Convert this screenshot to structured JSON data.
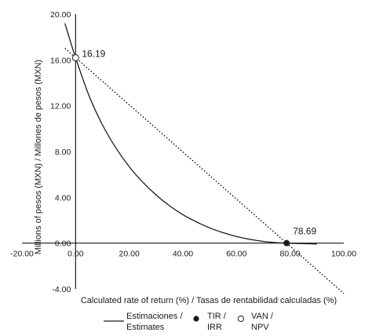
{
  "chart_data": {
    "type": "line",
    "xlabel": "Calculated rate of return (%) / Tasas de rentabilidad calculadas (%)",
    "ylabel": "Millions of pesos (MXN) / Millones de pesos (MXN)",
    "xlim": [
      -20,
      100
    ],
    "ylim": [
      -4,
      20
    ],
    "xticks": [
      "-20.00",
      "0.00",
      "20.00",
      "40.00",
      "60.00",
      "80.00",
      "100.00"
    ],
    "yticks": [
      "20.00",
      "16.00",
      "12.00",
      "8.00",
      "4.00",
      "0.00",
      "-4.00"
    ],
    "grid": false,
    "series": [
      {
        "name": "Estimaciones / Estimates",
        "style": "solid",
        "x": [
          -4,
          0,
          5,
          10,
          15,
          20,
          25,
          30,
          35,
          40,
          45,
          50,
          55,
          60,
          65,
          70,
          75,
          78.69,
          80,
          85,
          90
        ],
        "y": [
          19.2,
          16.19,
          12.88,
          10.33,
          8.32,
          6.67,
          5.33,
          4.21,
          3.27,
          2.49,
          1.86,
          1.33,
          0.91,
          0.58,
          0.33,
          0.15,
          0.04,
          0.0,
          -0.01,
          -0.05,
          -0.08
        ]
      },
      {
        "name": "",
        "style": "dotted",
        "x": [
          -4,
          100
        ],
        "y": [
          17.02,
          -4.39
        ]
      }
    ],
    "markers": [
      {
        "name": "VAN / NPV",
        "shape": "open-circle",
        "x": 0,
        "y": 16.19
      },
      {
        "name": "TIR / IRR",
        "shape": "filled-circle",
        "x": 78.69,
        "y": 0
      }
    ],
    "annotations": [
      {
        "text": "16.19",
        "x": 0,
        "y": 16.19
      },
      {
        "text": "78.69",
        "x": 78.69,
        "y": 0
      }
    ],
    "legend": {
      "placement": "bottom",
      "entries": [
        {
          "label_line1": "Estimaciones /",
          "label_line2": "Estimates",
          "symbol": "line"
        },
        {
          "label_line1": "TIR /",
          "label_line2": "IRR",
          "symbol": "filled-circle"
        },
        {
          "label_line1": "VAN /",
          "label_line2": "NPV",
          "symbol": "open-circle"
        }
      ]
    },
    "colors": {
      "line": "#1a1a1a",
      "axis": "#1a1a1a",
      "background": "#ffffff"
    }
  }
}
